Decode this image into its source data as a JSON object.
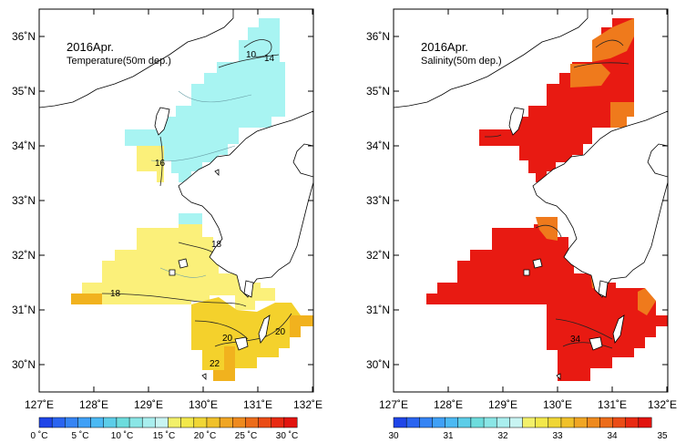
{
  "panels": [
    {
      "title": "2016Apr.",
      "subtitle": "Temperature(50m dep.)",
      "lon_ticks": [
        "127˚E",
        "128˚E",
        "129˚E",
        "130˚E",
        "131˚E",
        "132˚E"
      ],
      "lat_ticks": [
        "36˚N",
        "35˚N",
        "34˚N",
        "33˚N",
        "32˚N",
        "31˚N",
        "30˚N"
      ],
      "contour_labels": [
        "10",
        "14",
        "16",
        "18",
        "18",
        "20",
        "20",
        "22"
      ],
      "colorbar": {
        "labels": [
          "0 ˚C",
          "5 ˚C",
          "10 ˚C",
          "15 ˚C",
          "20 ˚C",
          "25 ˚C",
          "30 ˚C"
        ],
        "colors": [
          "#1f45e8",
          "#2a64f0",
          "#3584f4",
          "#3fa0f6",
          "#4bb9f3",
          "#5ccde8",
          "#6ddcdd",
          "#8ae6e6",
          "#a9eeee",
          "#c8f4f2",
          "#f2f06a",
          "#f2e84a",
          "#f0d635",
          "#f0c12a",
          "#f0a624",
          "#ee8a1e",
          "#ec6c1a",
          "#ea4c16",
          "#e82a12",
          "#e2140f"
        ]
      }
    },
    {
      "title": "2016Apr.",
      "subtitle": "Salinity(50m dep.)",
      "lon_ticks": [
        "127˚E",
        "128˚E",
        "129˚E",
        "130˚E",
        "131˚E",
        "132˚E"
      ],
      "lat_ticks": [
        "36˚N",
        "35˚N",
        "34˚N",
        "33˚N",
        "32˚N",
        "31˚N",
        "30˚N"
      ],
      "contour_labels": [
        "34"
      ],
      "colorbar": {
        "labels": [
          "30",
          "31",
          "32",
          "33",
          "34",
          "35"
        ],
        "colors": [
          "#1f45e8",
          "#2a64f0",
          "#3584f4",
          "#3fa0f6",
          "#4bb9f3",
          "#5ccde8",
          "#6ddcdd",
          "#8ae6e6",
          "#a9eeee",
          "#c8f4f2",
          "#f2f06a",
          "#f2e84a",
          "#f0d635",
          "#f0c12a",
          "#f0a624",
          "#ee8a1e",
          "#ec6c1a",
          "#ea4c16",
          "#e82a12",
          "#e2140f"
        ]
      }
    }
  ],
  "colors": {
    "temp_cold": "#a8f4f2",
    "temp_warm": "#fbf07a",
    "temp_warmer": "#f4d12c",
    "temp_orange": "#f1b21e",
    "sal_red": "#e81a12",
    "sal_orange": "#ef7a1c",
    "sal_darkorange": "#ec5a18"
  }
}
